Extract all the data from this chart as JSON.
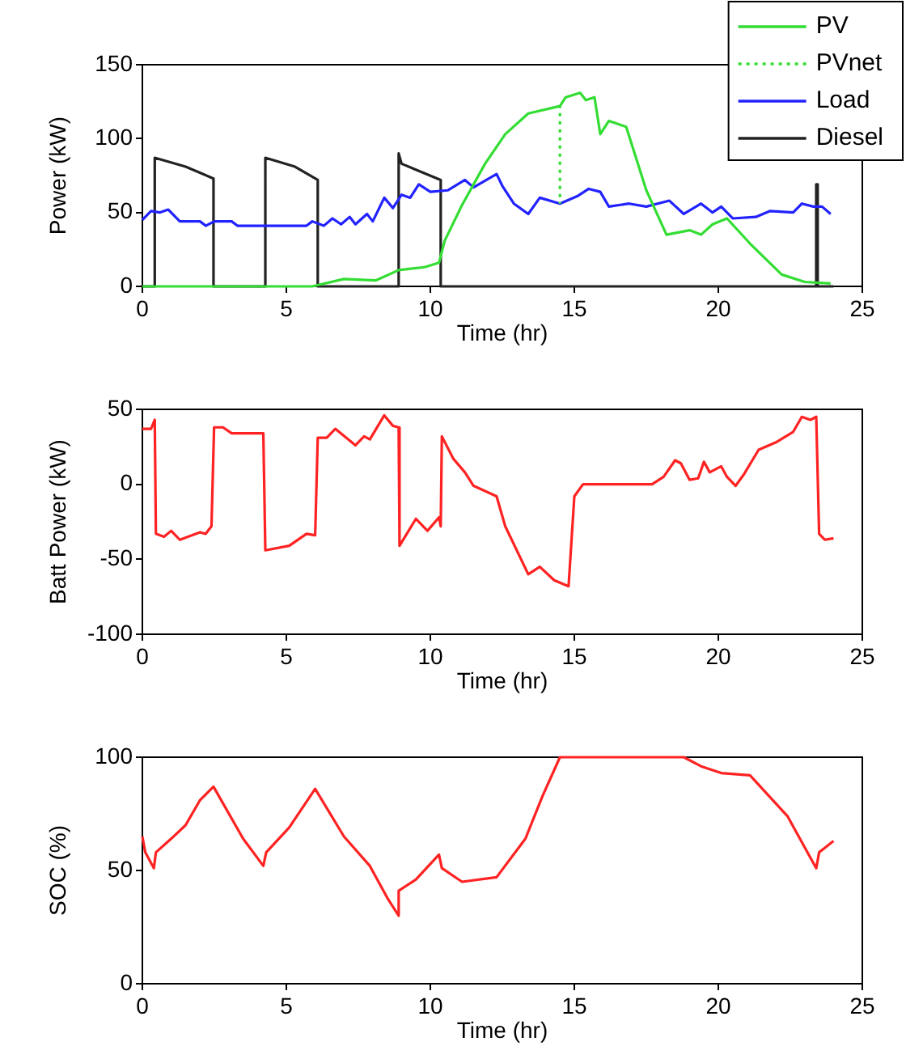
{
  "chart_data": [
    {
      "type": "line",
      "xlabel": "Time (hr)",
      "ylabel": "Power (kW)",
      "xlim": [
        0,
        25
      ],
      "xticks": [
        0,
        5,
        10,
        15,
        20,
        25
      ],
      "ylim": [
        0,
        150
      ],
      "yticks": [
        0,
        50,
        100,
        150
      ],
      "grid": false,
      "legend": "top right",
      "marker": "none",
      "series": [
        {
          "name": "PV",
          "color": "#33dd33",
          "x": [
            0,
            5.9,
            7,
            8.1,
            8.9,
            9.8,
            10.3,
            10.5,
            11.1,
            11.9,
            12.6,
            13.4,
            14.5,
            14.7,
            15.2,
            15.4,
            15.7,
            15.9,
            16.2,
            16.8,
            17.5,
            18.2,
            19,
            19.4,
            19.8,
            20.3,
            21.1,
            22.2,
            23,
            23.9
          ],
          "values": [
            0,
            0,
            5,
            4,
            11,
            13,
            16,
            31,
            55,
            83,
            103,
            117,
            122,
            128,
            131,
            126,
            128,
            103,
            112,
            108,
            65,
            35,
            38,
            35,
            42,
            46,
            29,
            8,
            3,
            2
          ]
        },
        {
          "name": "PVnet",
          "color": "#33dd33",
          "line_style": "dotted",
          "x": [
            14.5,
            14.5
          ],
          "values": [
            122,
            56
          ]
        },
        {
          "name": "Load",
          "color": "#2222ff",
          "x": [
            0,
            0.3,
            0.6,
            0.9,
            1.3,
            2,
            2.2,
            2.5,
            3.1,
            3.3,
            5.7,
            5.9,
            6.3,
            6.6,
            6.9,
            7.2,
            7.4,
            7.8,
            8,
            8.4,
            8.7,
            9,
            9.3,
            9.6,
            10,
            10.6,
            11.2,
            11.5,
            12.3,
            12.5,
            12.9,
            13.4,
            13.8,
            14.5,
            15.1,
            15.5,
            15.9,
            16.2,
            16.9,
            17.5,
            18.3,
            18.8,
            19.4,
            19.8,
            20.1,
            20.5,
            21.3,
            21.8,
            22.6,
            22.9,
            23.3,
            23.6,
            23.9
          ],
          "values": [
            45,
            51,
            50,
            52,
            44,
            44,
            41,
            44,
            44,
            41,
            41,
            44,
            41,
            46,
            42,
            47,
            42,
            49,
            44,
            60,
            53,
            62,
            60,
            69,
            64,
            65,
            72,
            67,
            76,
            68,
            56,
            49,
            60,
            56,
            61,
            66,
            64,
            54,
            56,
            54,
            58,
            49,
            56,
            50,
            54,
            46,
            47,
            51,
            50,
            56,
            54,
            54,
            49
          ]
        },
        {
          "name": "Diesel",
          "color": "#222222",
          "x": [
            0,
            0.43,
            0.43,
            1.5,
            2.47,
            2.47,
            4.27,
            4.27,
            5.3,
            6.09,
            6.09,
            8.9,
            8.9,
            9,
            10.36,
            10.36,
            23.4,
            23.4,
            23.45,
            23.45,
            24
          ],
          "values": [
            0,
            0,
            87,
            81,
            73,
            0,
            0,
            87,
            81,
            72,
            0,
            0,
            90,
            83,
            72,
            0,
            0,
            69,
            69,
            0,
            0
          ]
        }
      ]
    },
    {
      "type": "line",
      "xlabel": "Time (hr)",
      "ylabel": "Batt Power (kW)",
      "xlim": [
        0,
        25
      ],
      "xticks": [
        0,
        5,
        10,
        15,
        20,
        25
      ],
      "ylim": [
        -100,
        50
      ],
      "yticks": [
        -100,
        -50,
        0,
        50
      ],
      "grid": false,
      "marker": "none",
      "series": [
        {
          "color": "#ff2222",
          "x": [
            0,
            0.3,
            0.43,
            0.47,
            0.75,
            1,
            1.3,
            2,
            2.2,
            2.4,
            2.49,
            2.8,
            3.1,
            4.2,
            4.27,
            5.1,
            5.7,
            6,
            6.09,
            6.4,
            6.7,
            7.4,
            7.7,
            7.9,
            8.4,
            8.7,
            8.9,
            8.93,
            9.5,
            9.9,
            10.3,
            10.36,
            10.4,
            10.8,
            11.2,
            11.5,
            12.3,
            12.6,
            13.4,
            13.8,
            14.3,
            14.8,
            15,
            15.3,
            17.7,
            18.1,
            18.5,
            18.7,
            19,
            19.3,
            19.5,
            19.7,
            20.1,
            20.3,
            20.6,
            20.9,
            21.4,
            22,
            22.6,
            22.9,
            23.2,
            23.4,
            23.5,
            23.7,
            24
          ],
          "values": [
            37,
            37,
            43,
            -33,
            -35,
            -31,
            -37,
            -32,
            -33,
            -28,
            38,
            38,
            34,
            34,
            -44,
            -41,
            -33,
            -34,
            31,
            31,
            37,
            26,
            32,
            30,
            46,
            39,
            38,
            -41,
            -23,
            -31,
            -22,
            -28,
            32,
            17,
            8,
            -1,
            -8,
            -28,
            -60,
            -55,
            -64,
            -68,
            -8,
            0,
            0,
            5,
            16,
            14,
            3,
            4,
            15,
            8,
            12,
            5,
            -1,
            7,
            23,
            28,
            35,
            45,
            43,
            45,
            -33,
            -37,
            -36
          ]
        }
      ]
    },
    {
      "type": "line",
      "xlabel": "Time (hr)",
      "ylabel": "SOC (%)",
      "xlim": [
        0,
        25
      ],
      "xticks": [
        0,
        5,
        10,
        15,
        20,
        25
      ],
      "ylim": [
        0,
        100
      ],
      "yticks": [
        0,
        50,
        100
      ],
      "grid": false,
      "marker": "none",
      "series": [
        {
          "color": "#ff2222",
          "x": [
            0,
            0.1,
            0.4,
            0.47,
            1,
            1.5,
            2,
            2.47,
            3.5,
            4.2,
            4.3,
            5.1,
            6,
            7,
            7.9,
            8.5,
            8.9,
            8.9,
            9.5,
            10.3,
            10.4,
            11.1,
            12.3,
            13.3,
            13.9,
            14.5,
            18.8,
            19.4,
            20.1,
            21.1,
            22.4,
            23.4,
            23.5,
            24
          ],
          "values": [
            65,
            58,
            51,
            58,
            64,
            70,
            81,
            87,
            64,
            52,
            58,
            69,
            86,
            65,
            52,
            38,
            30,
            41,
            46,
            57,
            51,
            45,
            47,
            64,
            83,
            100,
            100,
            96,
            93,
            92,
            74,
            51,
            58,
            63
          ]
        }
      ]
    }
  ]
}
